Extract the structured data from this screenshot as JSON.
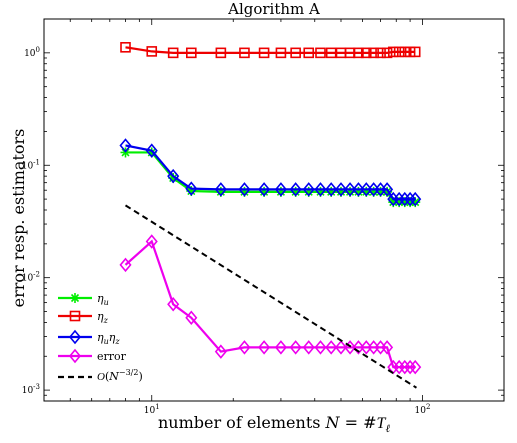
{
  "chart_data": {
    "type": "line",
    "title": "Algorithm A",
    "xlabel": "number of elements N = #T_ℓ",
    "xlabel_parts": {
      "prefix": "number of elements ",
      "var": "N",
      "eq": " = #",
      "calT": "T",
      "sub": "ℓ"
    },
    "ylabel": "error resp. estimators",
    "xscale": "log",
    "yscale": "log",
    "xlim": [
      4,
      200
    ],
    "ylim": [
      0.0008,
      2
    ],
    "x_ticks": [
      {
        "value": 10,
        "base": "10",
        "exp": "1"
      },
      {
        "value": 100,
        "base": "10",
        "exp": "2"
      }
    ],
    "y_ticks": [
      {
        "value": 0.001,
        "base": "10",
        "exp": "-3"
      },
      {
        "value": 0.01,
        "base": "10",
        "exp": "-2"
      },
      {
        "value": 0.1,
        "base": "10",
        "exp": "-1"
      },
      {
        "value": 1,
        "base": "10",
        "exp": "0"
      }
    ],
    "grid": false,
    "legend_position": "bottom-left",
    "series": [
      {
        "name": "η_u",
        "legend": {
          "sym": "η",
          "sub": "u"
        },
        "color": "#00ee00",
        "marker": "asterisk",
        "x": [
          8,
          10,
          12,
          14,
          18,
          22,
          26,
          30,
          34,
          38,
          42,
          46,
          50,
          54,
          58,
          62,
          66,
          70,
          74,
          78,
          82,
          86,
          90,
          94
        ],
        "y": [
          0.13,
          0.13,
          0.077,
          0.059,
          0.058,
          0.058,
          0.058,
          0.058,
          0.058,
          0.058,
          0.058,
          0.058,
          0.058,
          0.058,
          0.058,
          0.058,
          0.058,
          0.058,
          0.058,
          0.047,
          0.047,
          0.047,
          0.047,
          0.047
        ]
      },
      {
        "name": "η_z",
        "legend": {
          "sym": "η",
          "sub": "z"
        },
        "color": "#ee0000",
        "marker": "square",
        "x": [
          8,
          10,
          12,
          14,
          18,
          22,
          26,
          30,
          34,
          38,
          42,
          46,
          50,
          54,
          58,
          62,
          66,
          70,
          74,
          78,
          82,
          86,
          90,
          94
        ],
        "y": [
          1.12,
          1.03,
          1.0,
          1.0,
          1.0,
          1.0,
          1.0,
          1.0,
          1.0,
          1.0,
          1.0,
          1.0,
          1.0,
          1.0,
          1.0,
          1.0,
          1.0,
          1.0,
          1.0,
          1.02,
          1.02,
          1.02,
          1.02,
          1.02
        ]
      },
      {
        "name": "η_u η_z",
        "legend": {
          "sym": "η",
          "sub": "u",
          "sym2": "η",
          "sub2": "z"
        },
        "color": "#0000ee",
        "marker": "diamond",
        "x": [
          8,
          10,
          12,
          14,
          18,
          22,
          26,
          30,
          34,
          38,
          42,
          46,
          50,
          54,
          58,
          62,
          66,
          70,
          74,
          78,
          82,
          86,
          90,
          94
        ],
        "y": [
          0.15,
          0.135,
          0.08,
          0.062,
          0.061,
          0.061,
          0.061,
          0.061,
          0.061,
          0.061,
          0.061,
          0.061,
          0.061,
          0.061,
          0.061,
          0.061,
          0.061,
          0.061,
          0.061,
          0.05,
          0.05,
          0.05,
          0.05,
          0.05
        ]
      },
      {
        "name": "error",
        "legend": {
          "text": "error"
        },
        "color": "#ee00ee",
        "marker": "diamond",
        "x": [
          8,
          10,
          12,
          14,
          18,
          22,
          26,
          30,
          34,
          38,
          42,
          46,
          50,
          54,
          58,
          62,
          66,
          70,
          74,
          78,
          82,
          86,
          90,
          94
        ],
        "y": [
          0.013,
          0.021,
          0.0058,
          0.0044,
          0.0022,
          0.0024,
          0.0024,
          0.0024,
          0.0024,
          0.0024,
          0.0024,
          0.0024,
          0.0024,
          0.0024,
          0.0024,
          0.0024,
          0.0024,
          0.0024,
          0.0024,
          0.0016,
          0.0016,
          0.0016,
          0.0016,
          0.0016
        ]
      },
      {
        "name": "O(N^{-3/2})",
        "legend": {
          "O": "O",
          "open": "(",
          "N": "N",
          "exp": "−3/2",
          "close": ")"
        },
        "color": "#000000",
        "marker": "none",
        "dashed": true,
        "x": [
          8,
          95
        ],
        "y": [
          0.044,
          0.00105
        ]
      }
    ]
  }
}
